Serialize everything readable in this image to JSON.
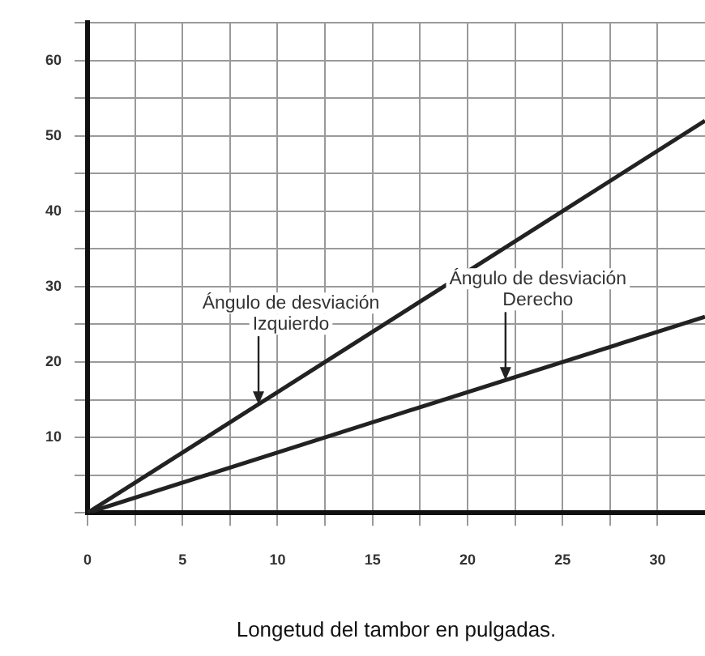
{
  "chart_data": {
    "type": "line",
    "xlabel": "Longetud del tambor en pulgadas.",
    "x": [
      0,
      32.5
    ],
    "series": [
      {
        "color": "#222222",
        "values": [
          0,
          52
        ]
      },
      {
        "color": "#222222",
        "values": [
          0,
          26
        ]
      }
    ],
    "xlim": [
      0,
      32.5
    ],
    "ylim": [
      0,
      65
    ],
    "xticks": [
      0,
      {
        "value": 2.5,
        "label": null
      },
      5,
      {
        "value": 7.5,
        "label": null
      },
      10,
      {
        "value": 12.5,
        "label": null
      },
      15,
      {
        "value": 17.5,
        "label": null
      },
      20,
      {
        "value": 22.5,
        "label": null
      },
      25,
      {
        "value": 27.5,
        "label": null
      },
      30
    ],
    "yticks": [
      {
        "value": 0,
        "label": null
      },
      {
        "value": 5,
        "label": null
      },
      10,
      {
        "value": 15,
        "label": null
      },
      20,
      {
        "value": 25,
        "label": null
      },
      30,
      {
        "value": 35,
        "label": null
      },
      40,
      {
        "value": 45,
        "label": null
      },
      50,
      {
        "value": 55,
        "label": null
      },
      60,
      {
        "value": 65,
        "label": null
      }
    ],
    "grid": true,
    "legend": false,
    "marker": "none",
    "line_style": "solid",
    "annotations": [
      {
        "text": "Ángulo de desviación\nIzquierdo",
        "x": 9,
        "y": 14.4
      },
      {
        "text": "Ángulo de desviación\nDerecho",
        "x": 22,
        "y": 17.6
      }
    ]
  }
}
